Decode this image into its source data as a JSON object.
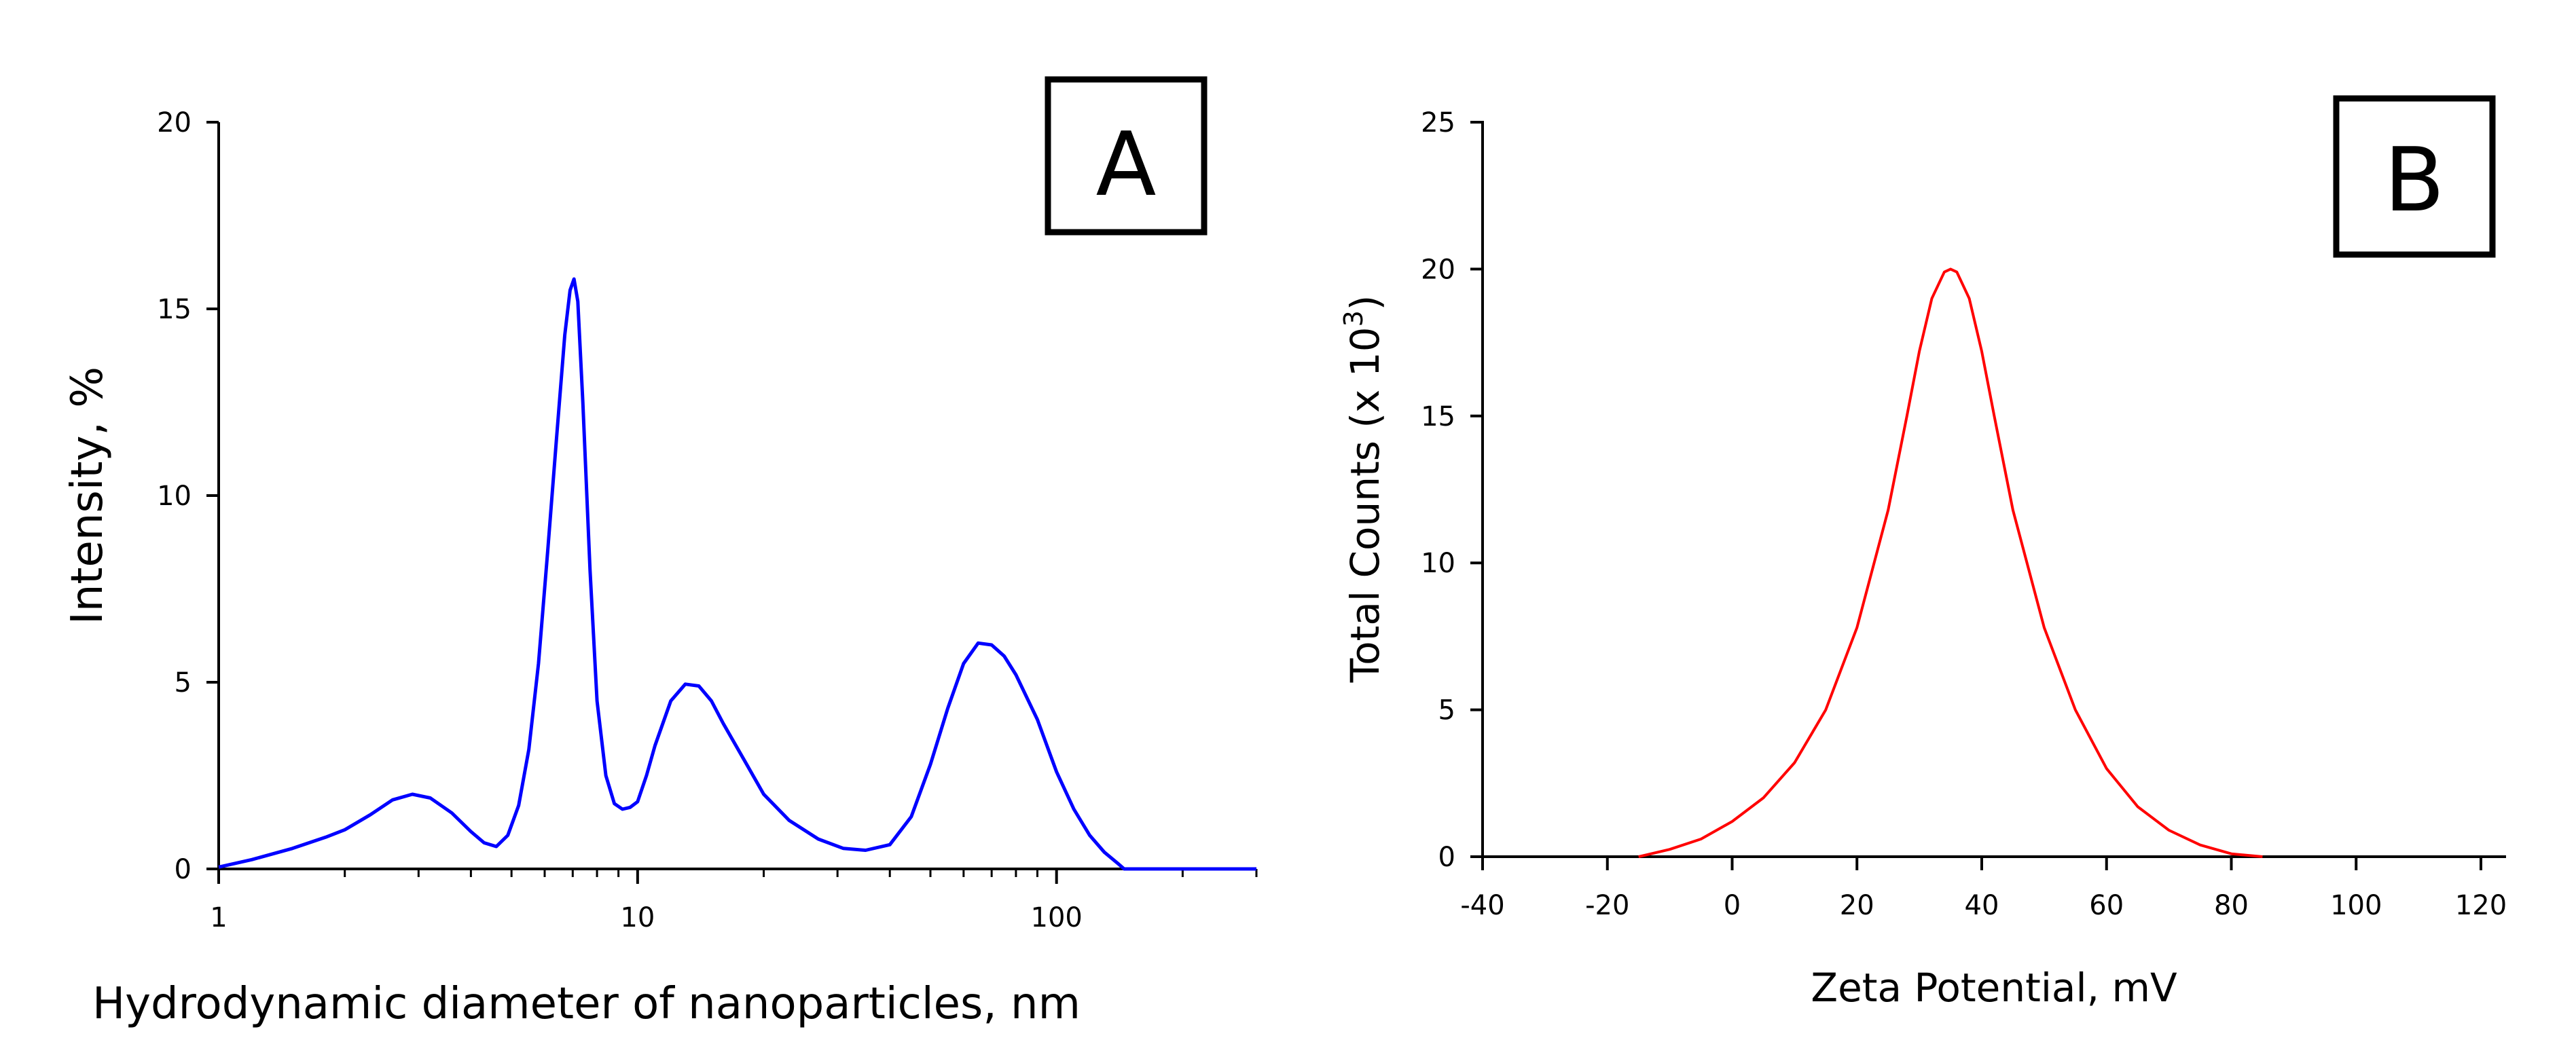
{
  "chart_data": [
    {
      "type": "line",
      "panel_label": "A",
      "title": "",
      "xlabel": "Hydrodynamic diameter of nanoparticles, nm",
      "ylabel": "Intensity, %",
      "xscale": "log",
      "xlim": [
        1,
        300
      ],
      "ylim": [
        0,
        20
      ],
      "xticks": [
        1,
        10,
        100
      ],
      "xtick_labels": [
        "1",
        "10",
        "100"
      ],
      "yticks": [
        0,
        5,
        10,
        15,
        20
      ],
      "ytick_labels": [
        "0",
        "5",
        "10",
        "15",
        "20"
      ],
      "series": [
        {
          "name": "Intensity",
          "color": "#0000ff",
          "x": [
            1,
            1.2,
            1.5,
            1.8,
            2.0,
            2.3,
            2.6,
            2.9,
            3.2,
            3.6,
            4.0,
            4.3,
            4.6,
            4.9,
            5.2,
            5.5,
            5.8,
            6.1,
            6.4,
            6.7,
            6.9,
            7.05,
            7.2,
            7.4,
            7.7,
            8.0,
            8.4,
            8.8,
            9.2,
            9.6,
            10.0,
            10.5,
            11,
            12,
            13,
            14,
            15,
            16,
            18,
            20,
            23,
            27,
            31,
            35,
            40,
            45,
            50,
            55,
            60,
            65,
            70,
            75,
            80,
            90,
            100,
            110,
            120,
            130,
            140,
            145,
            150,
            200,
            250,
            300
          ],
          "values": [
            0.05,
            0.25,
            0.55,
            0.85,
            1.05,
            1.45,
            1.85,
            2.0,
            1.9,
            1.5,
            1.0,
            0.7,
            0.6,
            0.9,
            1.7,
            3.2,
            5.5,
            8.5,
            11.5,
            14.3,
            15.5,
            15.8,
            15.2,
            12.5,
            8.0,
            4.5,
            2.5,
            1.75,
            1.6,
            1.65,
            1.8,
            2.5,
            3.3,
            4.5,
            4.95,
            4.9,
            4.5,
            3.9,
            2.9,
            2.0,
            1.3,
            0.8,
            0.55,
            0.5,
            0.65,
            1.4,
            2.8,
            4.3,
            5.5,
            6.05,
            6.0,
            5.7,
            5.2,
            4.0,
            2.6,
            1.6,
            0.9,
            0.45,
            0.15,
            0.0,
            0.0,
            0.0,
            0.0,
            0.0
          ]
        }
      ]
    },
    {
      "type": "line",
      "panel_label": "B",
      "title": "",
      "xlabel": "Zeta Potential, mV",
      "ylabel_main": "Total Counts (x 10",
      "ylabel_sup": "3",
      "ylabel_close": ")",
      "xlim": [
        -40,
        120
      ],
      "ylim": [
        0,
        25
      ],
      "xticks": [
        -40,
        -20,
        0,
        20,
        40,
        60,
        80,
        100,
        120
      ],
      "xtick_labels": [
        "-40",
        "-20",
        "0",
        "20",
        "40",
        "60",
        "80",
        "100",
        "120"
      ],
      "yticks": [
        0,
        5,
        10,
        15,
        20,
        25
      ],
      "ytick_labels": [
        "0",
        "5",
        "10",
        "15",
        "20",
        "25"
      ],
      "series": [
        {
          "name": "Total Counts",
          "color": "#ff0000",
          "x": [
            -15,
            -10,
            -5,
            0,
            5,
            10,
            15,
            20,
            25,
            28,
            30,
            32,
            34,
            35,
            36,
            38,
            40,
            42,
            45,
            50,
            55,
            60,
            65,
            70,
            75,
            80,
            85
          ],
          "values": [
            0.0,
            0.25,
            0.6,
            1.2,
            2.0,
            3.2,
            5.0,
            7.8,
            11.8,
            15.0,
            17.2,
            19.0,
            19.9,
            20.0,
            19.9,
            19.0,
            17.2,
            15.0,
            11.8,
            7.8,
            5.0,
            3.0,
            1.7,
            0.9,
            0.4,
            0.1,
            0.0
          ]
        }
      ]
    }
  ]
}
